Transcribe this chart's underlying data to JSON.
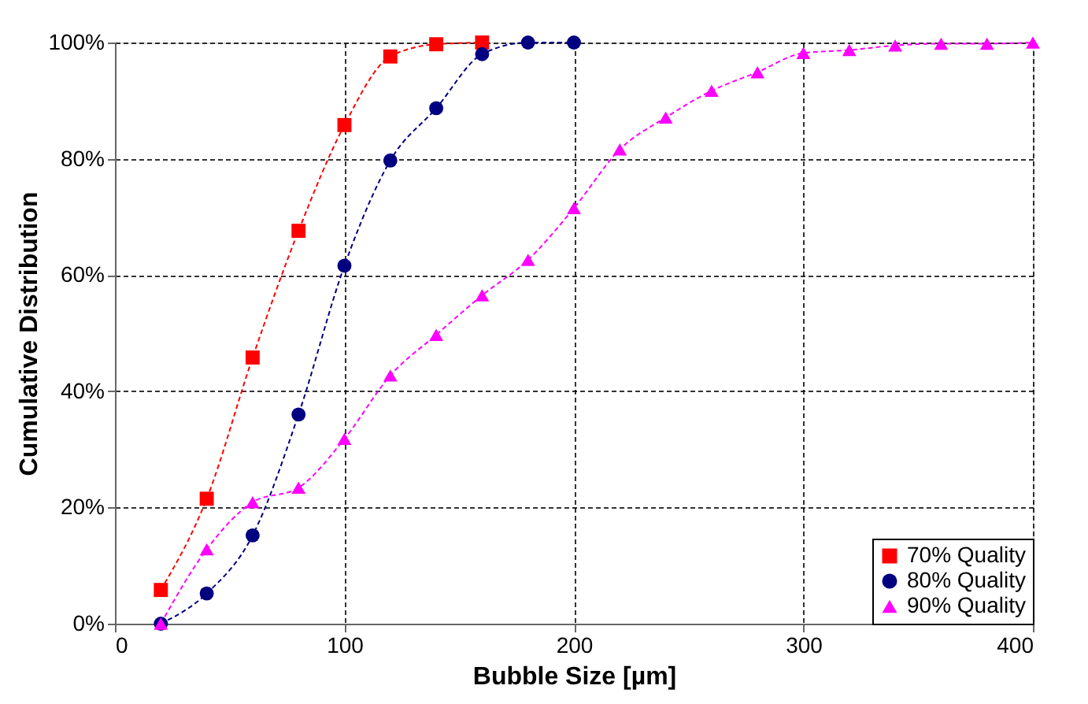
{
  "chart_data": {
    "type": "line",
    "xlabel": "Bubble Size [µm]",
    "ylabel": "Cumulative Distribution",
    "xlim": [
      0,
      400
    ],
    "xticks": [
      0,
      100,
      200,
      300,
      400
    ],
    "ylim": [
      0,
      100
    ],
    "yticks": [
      {
        "value": 0,
        "label": "0%"
      },
      {
        "value": 20,
        "label": "20%"
      },
      {
        "value": 40,
        "label": "40%"
      },
      {
        "value": 60,
        "label": "60%"
      },
      {
        "value": 80,
        "label": "80%"
      },
      {
        "value": 100,
        "label": "100%"
      }
    ],
    "grid": true,
    "legend": "bottom right",
    "line_style": "dashed",
    "series": [
      {
        "name": "70% Quality",
        "color": "#ff0000",
        "marker": "square",
        "x": [
          20,
          40,
          60,
          80,
          100,
          120,
          140,
          160
        ],
        "values": [
          5.8,
          21.5,
          45.8,
          67.6,
          85.8,
          97.6,
          99.7,
          100
        ]
      },
      {
        "name": "80% Quality",
        "color": "#000080",
        "marker": "circle",
        "x": [
          20,
          40,
          60,
          80,
          100,
          120,
          140,
          160,
          180,
          200
        ],
        "values": [
          0,
          5.2,
          15.2,
          36,
          61.6,
          79.7,
          88.7,
          98,
          100,
          100
        ]
      },
      {
        "name": "90% Quality",
        "color": "#ff00ff",
        "marker": "triangle",
        "x": [
          20,
          40,
          60,
          80,
          100,
          120,
          140,
          160,
          180,
          200,
          220,
          240,
          260,
          280,
          300,
          320,
          340,
          360,
          380,
          400
        ],
        "values": [
          0,
          12.8,
          20.9,
          23.4,
          31.8,
          42.7,
          49.7,
          56.5,
          62.6,
          71.5,
          81.6,
          87.1,
          91.7,
          94.9,
          98.2,
          98.7,
          99.5,
          99.8,
          99.8,
          100
        ]
      }
    ]
  }
}
